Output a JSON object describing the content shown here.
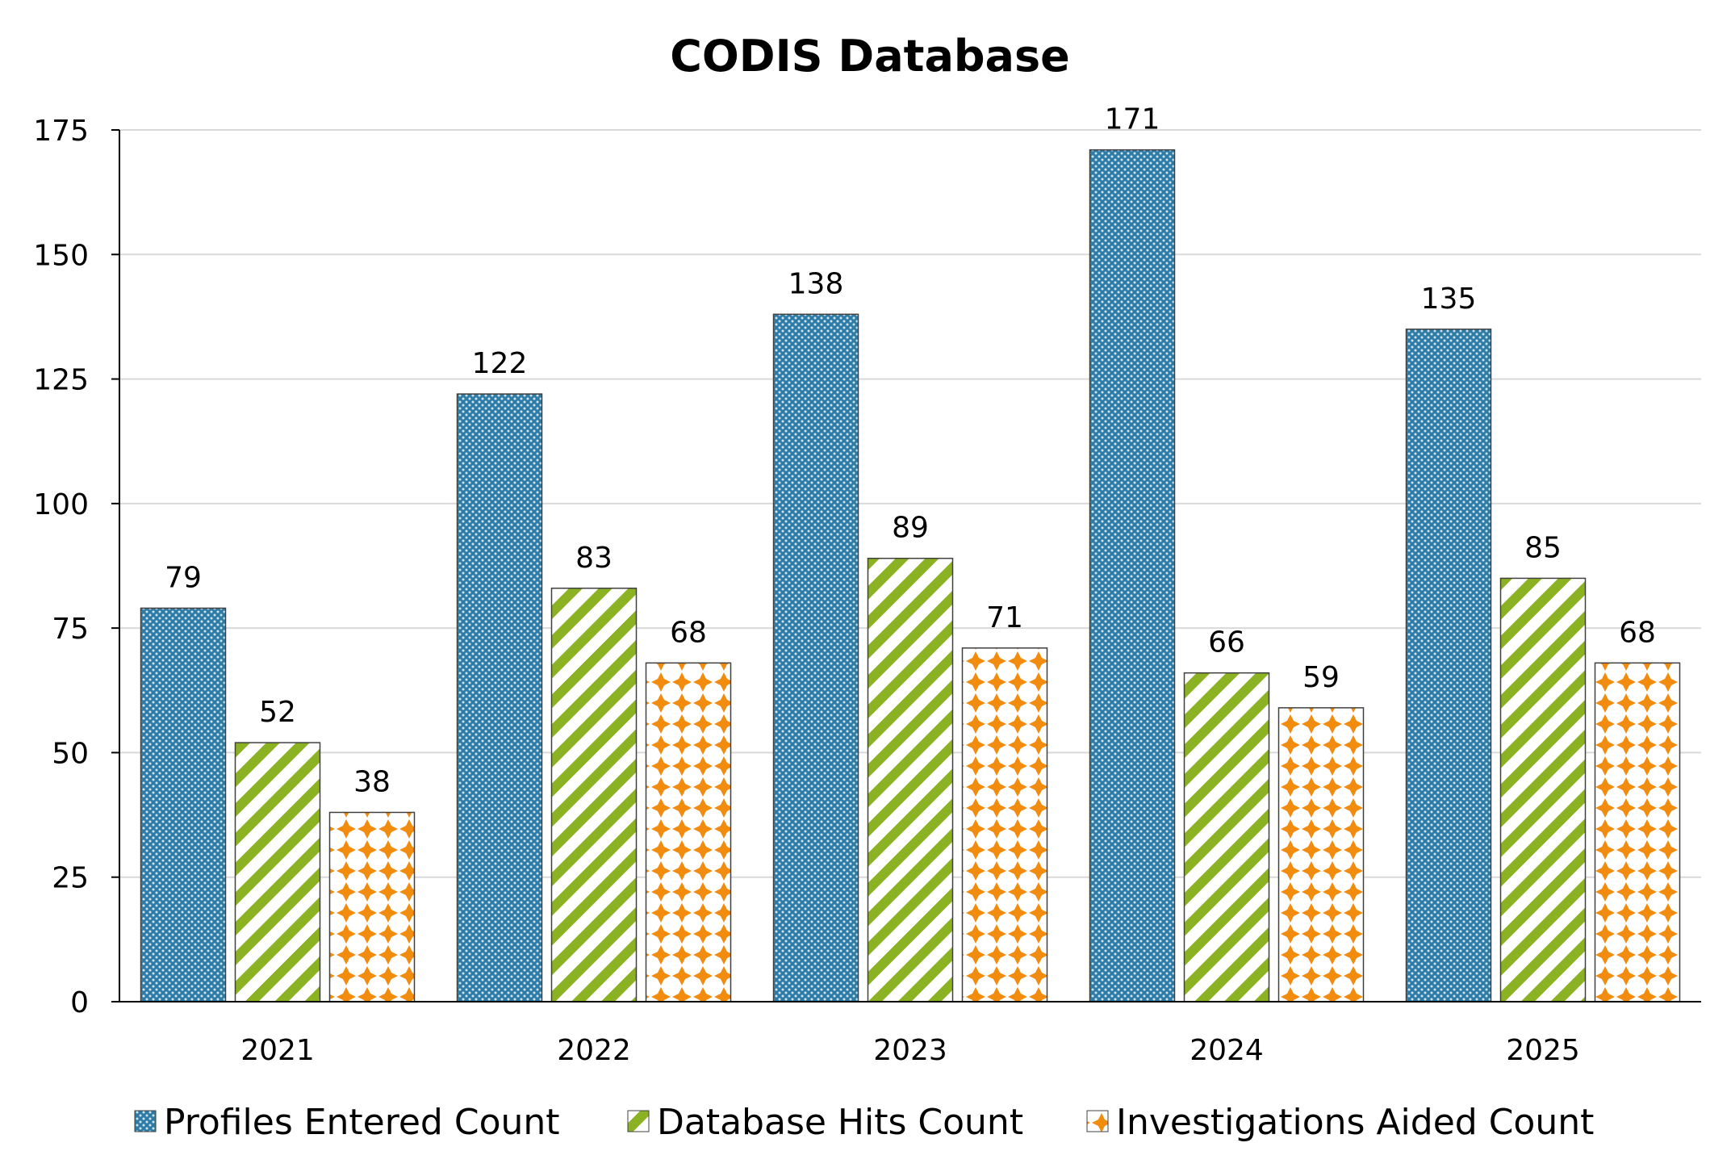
{
  "chart_data": {
    "type": "bar",
    "title": "CODIS Database",
    "xlabel": "",
    "ylabel": "",
    "categories": [
      "2021",
      "2022",
      "2023",
      "2024",
      "2025"
    ],
    "series": [
      {
        "name": "Profiles Entered Count",
        "values": [
          79,
          122,
          138,
          171,
          135
        ],
        "color": "#2e7ba6",
        "pattern": "dotted-grid"
      },
      {
        "name": "Database Hits Count",
        "values": [
          52,
          83,
          89,
          66,
          85
        ],
        "color": "#8ab223",
        "pattern": "diagonal-stripes"
      },
      {
        "name": "Investigations Aided Count",
        "values": [
          38,
          68,
          71,
          59,
          68
        ],
        "color": "#f28c0f",
        "pattern": "diamond-cross"
      }
    ],
    "ylim": [
      0,
      175
    ],
    "yticks": [
      0,
      25,
      50,
      75,
      100,
      125,
      150,
      175
    ],
    "grid": true,
    "legend": "bottom"
  }
}
